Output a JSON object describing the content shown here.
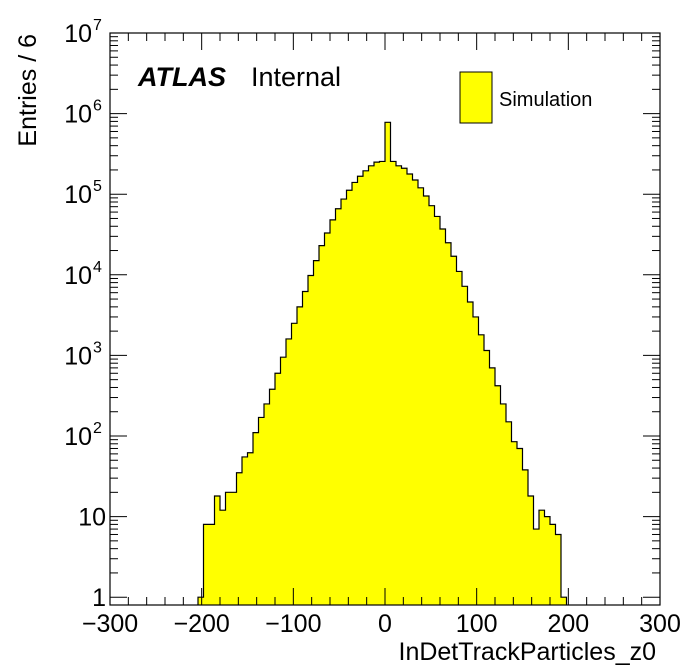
{
  "chart_data": {
    "type": "histogram",
    "xlabel": "InDetTrackParticles_z0",
    "ylabel": "Entries / 6",
    "label_bold": "ATLAS",
    "label_normal": "Internal",
    "legend": {
      "placement": "top-right",
      "entries": [
        {
          "label": "Simulation",
          "color": "#ffff00"
        }
      ]
    },
    "xlim": [
      -300,
      300
    ],
    "ylim": [
      0.8,
      10000000
    ],
    "yscale": "log",
    "grid": false,
    "bin_width": 6,
    "x_ticks": [
      {
        "value": -300,
        "label": "−300"
      },
      {
        "value": -200,
        "label": "−200"
      },
      {
        "value": -100,
        "label": "−100"
      },
      {
        "value": 0,
        "label": "0"
      },
      {
        "value": 100,
        "label": "100"
      },
      {
        "value": 200,
        "label": "200"
      },
      {
        "value": 300,
        "label": "300"
      }
    ],
    "y_ticks": [
      {
        "value": 1,
        "base": "1",
        "exp": ""
      },
      {
        "value": 10,
        "base": "10",
        "exp": ""
      },
      {
        "value": 100,
        "base": "10",
        "exp": "2"
      },
      {
        "value": 1000,
        "base": "10",
        "exp": "3"
      },
      {
        "value": 10000,
        "base": "10",
        "exp": "4"
      },
      {
        "value": 100000,
        "base": "10",
        "exp": "5"
      },
      {
        "value": 1000000,
        "base": "10",
        "exp": "6"
      },
      {
        "value": 10000000,
        "base": "10",
        "exp": "7"
      }
    ],
    "series": [
      {
        "fill": "#ffff00",
        "bin_lows": [
          -204,
          -198,
          -192,
          -186,
          -180,
          -174,
          -168,
          -162,
          -156,
          -150,
          -144,
          -138,
          -132,
          -126,
          -120,
          -114,
          -108,
          -102,
          -96,
          -90,
          -84,
          -78,
          -72,
          -66,
          -60,
          -54,
          -48,
          -42,
          -36,
          -30,
          -24,
          -18,
          -12,
          -6,
          0,
          6,
          12,
          18,
          24,
          30,
          36,
          42,
          48,
          54,
          60,
          66,
          72,
          78,
          84,
          90,
          96,
          102,
          108,
          114,
          120,
          126,
          132,
          138,
          144,
          150,
          156,
          162,
          168,
          174,
          180,
          186,
          192
        ],
        "values": [
          1,
          8,
          8,
          18,
          12,
          20,
          20,
          35,
          55,
          62,
          110,
          170,
          250,
          380,
          600,
          950,
          1600,
          2500,
          4000,
          6200,
          9800,
          15000,
          23000,
          33000,
          48000,
          66000,
          87000,
          112000,
          140000,
          167000,
          195000,
          225000,
          250000,
          255000,
          780000,
          255000,
          225000,
          210000,
          178000,
          150000,
          120000,
          95000,
          72000,
          53000,
          37000,
          25000,
          17000,
          11000,
          7200,
          4600,
          3000,
          1800,
          1150,
          700,
          420,
          250,
          150,
          85,
          70,
          38,
          18,
          7,
          12,
          10,
          8,
          6,
          1
        ]
      }
    ]
  }
}
